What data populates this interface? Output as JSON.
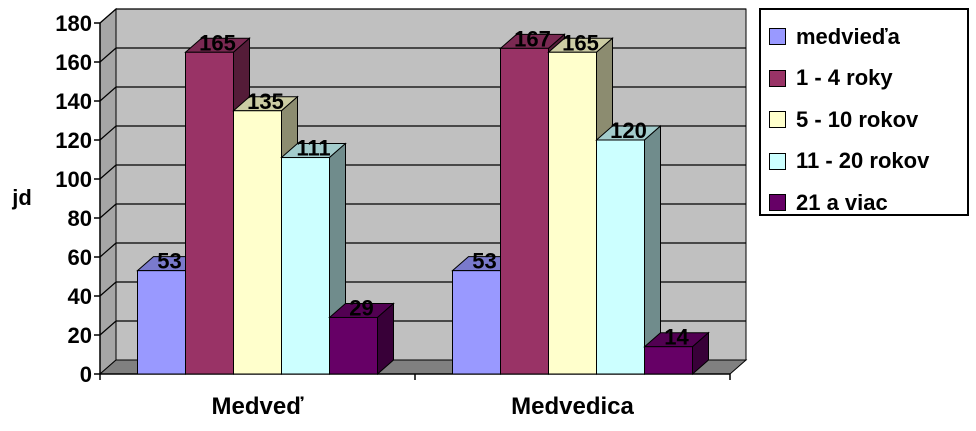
{
  "chart_data": {
    "type": "bar",
    "categories": [
      "Medveď",
      "Medvedica"
    ],
    "series": [
      {
        "name": "medvieďa",
        "values": [
          53,
          53
        ],
        "color": "#9999ff"
      },
      {
        "name": "1 - 4 roky",
        "values": [
          165,
          167
        ],
        "color": "#993366"
      },
      {
        "name": "5 - 10 rokov",
        "values": [
          135,
          165
        ],
        "color": "#ffffcc"
      },
      {
        "name": "11 - 20 rokov",
        "values": [
          111,
          120
        ],
        "color": "#ccffff"
      },
      {
        "name": "21 a viac",
        "values": [
          29,
          14
        ],
        "color": "#660066"
      }
    ],
    "ylabel": "jd",
    "ylim": [
      0,
      180
    ],
    "yticks": [
      "0",
      "20",
      "40",
      "60",
      "80",
      "100",
      "120",
      "140",
      "160",
      "180"
    ],
    "grid": true,
    "legend": "right",
    "style": "3d-clustered-column",
    "wall_color": "#c0c0c0",
    "floor_color": "#808080"
  }
}
